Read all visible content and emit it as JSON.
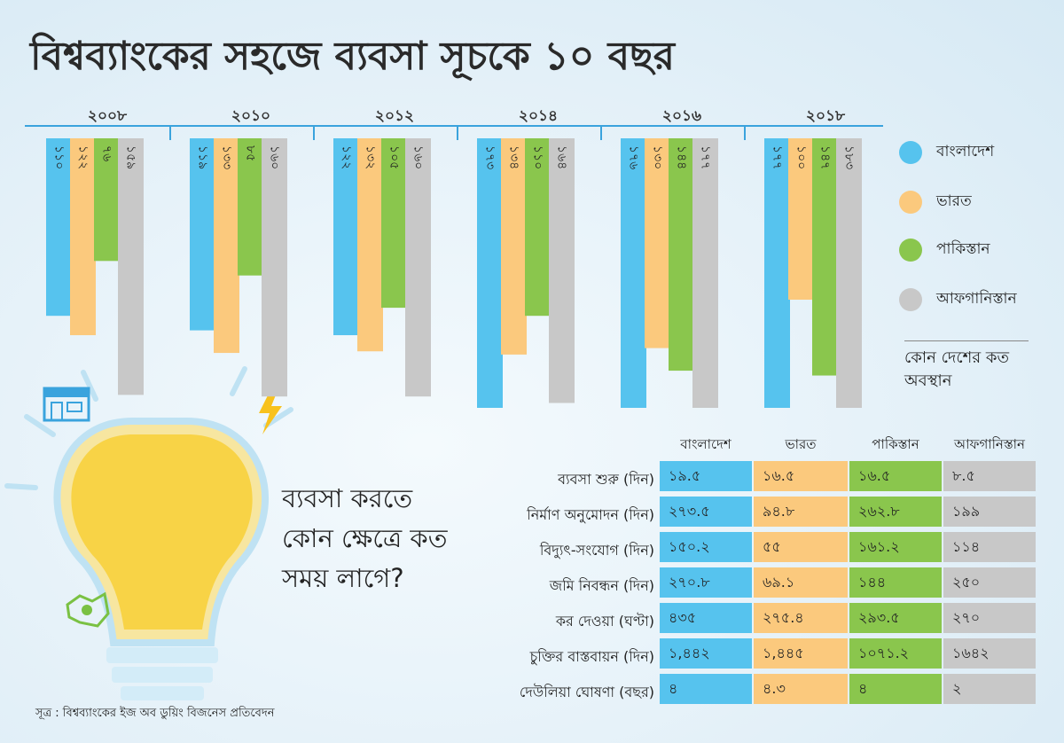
{
  "title": "বিশ্বব্যাংকের সহজে ব্যবসা সূচকে ১০ বছর",
  "colors": {
    "bangladesh": "#56c3ee",
    "india": "#fbc97d",
    "pakistan": "#8ac64d",
    "afghanistan": "#c8c8c8"
  },
  "chart_data": {
    "type": "bar",
    "categories": [
      "২০০৮",
      "২০১০",
      "২০১২",
      "২০১৪",
      "২০১৬",
      "২০১৮"
    ],
    "series": [
      {
        "name": "বাংলাদেশ",
        "values": [
          110,
          119,
          122,
          173,
          176,
          177
        ],
        "labels": [
          "১১০",
          "১১৯",
          "১২২",
          "১৭৩",
          "১৭৬",
          "১৭৭"
        ]
      },
      {
        "name": "ভারত",
        "values": [
          122,
          133,
          132,
          134,
          130,
          100
        ],
        "labels": [
          "১২২",
          "১৩৩",
          "১৩২",
          "১৩৪",
          "১৩০",
          "১০০"
        ]
      },
      {
        "name": "পাকিস্তান",
        "values": [
          76,
          85,
          105,
          110,
          144,
          147
        ],
        "labels": [
          "৭৬",
          "৮৫",
          "১০৫",
          "১১০",
          "১৪৪",
          "১৪৭"
        ]
      },
      {
        "name": "আফগানিস্তান",
        "values": [
          159,
          160,
          160,
          164,
          177,
          183
        ],
        "labels": [
          "১৫৯",
          "১৬০",
          "১৬০",
          "১৬৪",
          "১৭৭",
          "১৮৩"
        ]
      }
    ]
  },
  "legend_note": "কোন দেশের কত অবস্থান",
  "question": "ব্যবসা করতে কোন ক্ষেত্রে কত সময় লাগে?",
  "table": {
    "columns": [
      "বাংলাদেশ",
      "ভারত",
      "পাকিস্তান",
      "আফগানিস্তান"
    ],
    "rows": [
      {
        "label": "ব্যবসা শুরু (দিন)",
        "values": [
          "১৯.৫",
          "১৬.৫",
          "১৬.৫",
          "৮.৫"
        ]
      },
      {
        "label": "নির্মাণ অনুমোদন (দিন)",
        "values": [
          "২৭৩.৫",
          "৯৪.৮",
          "২৬২.৮",
          "১৯৯"
        ]
      },
      {
        "label": "বিদ্যুৎ-সংযোগ (দিন)",
        "values": [
          "১৫০.২",
          "৫৫",
          "১৬১.২",
          "১১৪"
        ]
      },
      {
        "label": "জমি নিবন্ধন (দিন)",
        "values": [
          "২৭০.৮",
          "৬৯.১",
          "১৪৪",
          "২৫০"
        ]
      },
      {
        "label": "কর দেওয়া (ঘণ্টা)",
        "values": [
          "৪৩৫",
          "২৭৫.৪",
          "২৯৩.৫",
          "২৭০"
        ]
      },
      {
        "label": "চুক্তির বাস্তবায়ন (দিন)",
        "values": [
          "১,৪৪২",
          "১,৪৪৫",
          "১০৭১.২",
          "১৬৪২"
        ]
      },
      {
        "label": "দেউলিয়া ঘোষণা (বছর)",
        "values": [
          "৪",
          "৪.৩",
          "৪",
          "২"
        ]
      }
    ]
  },
  "source": "সূত্র : বিশ্বব্যাংকের ইজ অব ডুয়িং বিজনেস প্রতিবেদন",
  "icons": [
    "lightbulb-icon",
    "lightning-icon",
    "shop-icon",
    "map-icon"
  ]
}
